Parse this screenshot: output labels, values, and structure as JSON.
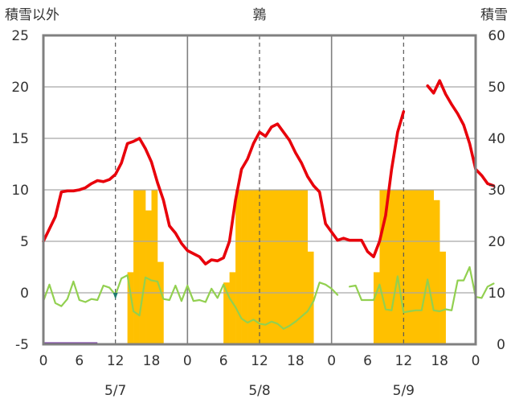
{
  "chart_data": {
    "type": "bar",
    "title": "鶉",
    "left_axis_label": "積雪以外",
    "right_axis_label": "積雪",
    "left_ylim": [
      -5,
      25
    ],
    "left_yticks": [
      "25",
      "20",
      "15",
      "10",
      "5",
      "0",
      "-5"
    ],
    "right_ylim": [
      0,
      60
    ],
    "right_yticks": [
      "60",
      "50",
      "40",
      "30",
      "20",
      "10",
      "0"
    ],
    "x_hour_ticks": [
      "0",
      "6",
      "12",
      "18",
      "0",
      "6",
      "12",
      "18",
      "0",
      "6",
      "12",
      "18",
      "0"
    ],
    "day_labels": [
      "5/7",
      "5/8",
      "5/9"
    ],
    "grid": true,
    "colors": {
      "temperature": "#e8000b",
      "precipitation": "#ffc000",
      "wind": "#92d050",
      "depth": "#7030a0",
      "accent": "#1f7a6e"
    },
    "series": [
      {
        "key": "temperature",
        "values": [
          5.0,
          6.2,
          7.4,
          9.8,
          9.9,
          9.9,
          10.0,
          10.2,
          10.6,
          10.9,
          10.8,
          11.0,
          11.5,
          12.6,
          14.5,
          14.7,
          15.0,
          14.0,
          12.7,
          10.7,
          9.0,
          6.5,
          5.8,
          4.8,
          4.1,
          3.8,
          3.5,
          2.8,
          3.2,
          3.1,
          3.4,
          5.0,
          9.0,
          12.0,
          13.0,
          14.5,
          15.6,
          15.2,
          16.1,
          16.4,
          15.6,
          14.8,
          13.6,
          12.6,
          11.3,
          10.4,
          9.8,
          6.7,
          5.9,
          5.1,
          5.3,
          5.1,
          5.1,
          5.1,
          4.0,
          3.5,
          5.0,
          7.5,
          12.0,
          15.6,
          17.6,
          null,
          null,
          null,
          20.1,
          19.4,
          20.6,
          19.3,
          18.3,
          17.4,
          16.3,
          14.5,
          12.0,
          11.4,
          10.6,
          10.4
        ]
      },
      {
        "key": "wind",
        "values": [
          -0.8,
          0.8,
          -1.0,
          -1.3,
          -0.6,
          1.1,
          -0.7,
          -0.9,
          -0.6,
          -0.7,
          0.7,
          0.5,
          -0.2,
          1.4,
          1.7,
          -1.8,
          -2.2,
          1.5,
          1.2,
          1.1,
          -0.6,
          -0.7,
          0.7,
          -0.8,
          0.7,
          -0.8,
          -0.7,
          -0.9,
          0.4,
          -0.5,
          0.8,
          -0.5,
          -1.4,
          -2.5,
          -2.9,
          -2.6,
          -3.0,
          -3.1,
          -2.8,
          -3.0,
          -3.5,
          -3.2,
          -2.8,
          -2.3,
          -1.8,
          -0.8,
          1.0,
          0.8,
          0.4,
          -0.2,
          null,
          0.6,
          0.7,
          -0.7,
          -0.7,
          -0.7,
          0.8,
          -1.6,
          -1.7,
          1.6,
          -1.9,
          -1.8,
          -1.7,
          -1.7,
          1.3,
          -1.7,
          -1.8,
          -1.6,
          -1.7,
          1.2,
          1.2,
          2.5,
          -0.4,
          -0.5,
          0.6,
          0.9
        ]
      },
      {
        "key": "precipitation",
        "values": [
          0,
          0,
          0,
          0,
          0,
          0,
          0,
          0,
          0,
          0,
          0,
          0,
          0,
          0,
          14,
          30,
          30,
          26,
          30,
          16,
          0,
          0,
          0,
          0,
          0,
          0,
          0,
          0,
          0,
          0,
          12,
          14,
          30,
          30,
          30,
          30,
          30,
          30,
          30,
          30,
          30,
          30,
          30,
          30,
          18,
          0,
          0,
          0,
          0,
          0,
          0,
          0,
          0,
          0,
          0,
          14,
          30,
          30,
          30,
          30,
          30,
          30,
          30,
          30,
          30,
          28,
          18,
          0,
          0,
          0,
          0,
          0,
          0,
          0,
          0,
          0
        ]
      },
      {
        "key": "depth",
        "values": [
          0,
          0,
          0,
          0,
          0,
          0,
          0,
          0,
          0,
          0,
          0,
          0,
          0,
          0,
          0,
          0,
          0,
          0,
          0,
          0,
          0,
          0,
          0,
          0,
          0,
          0,
          0,
          0,
          0,
          0,
          0,
          0,
          0,
          0,
          0,
          0,
          0,
          0,
          0,
          0,
          0,
          0,
          0,
          0,
          0,
          0,
          0,
          0,
          0,
          0,
          0,
          0,
          0,
          0,
          0,
          0,
          0,
          0,
          0,
          0,
          0,
          0,
          0,
          0,
          0,
          0,
          0,
          0,
          0,
          0,
          0,
          0,
          0,
          0,
          0,
          0
        ]
      }
    ]
  }
}
